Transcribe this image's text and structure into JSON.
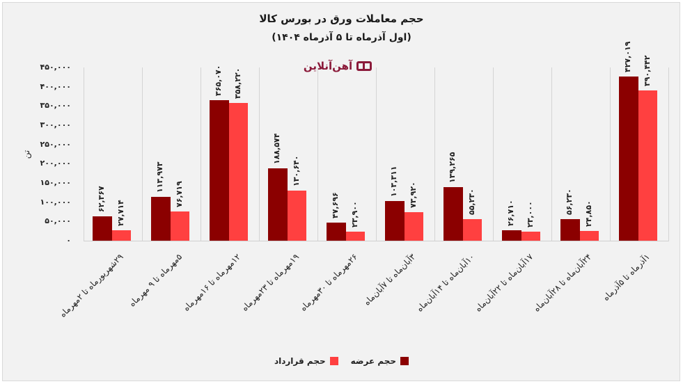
{
  "header": {
    "title": "حجم معاملات ورق در بورس کالا",
    "subtitle": "(اول آذرماه تا ۵ آذرماه ۱۴۰۴)",
    "logo_text": "آهن‌آنلاین"
  },
  "colors": {
    "offer": "#8b0000",
    "contract": "#ff4040",
    "logo": "#8b1a3a",
    "background": "#f2f2f2"
  },
  "legend": [
    {
      "label": "حجم عرضه",
      "color": "#8b0000"
    },
    {
      "label": "حجم قرارداد",
      "color": "#ff4040"
    }
  ],
  "y_axis": {
    "label": "تن",
    "ticks": [
      "۴۵۰,۰۰۰",
      "۴۰۰,۰۰۰",
      "۳۵۰,۰۰۰",
      "۳۰۰,۰۰۰",
      "۲۵۰,۰۰۰",
      "۲۰۰,۰۰۰",
      "۱۵۰,۰۰۰",
      "۱۰۰,۰۰۰",
      "۵۰,۰۰۰",
      "۰"
    ]
  },
  "bars": [
    {
      "category": "۲۹شهریورماه تا ۲مهرماه",
      "offer_label": "۶۲,۳۶۷",
      "contract_label": "۲۷,۷۱۴"
    },
    {
      "category": "۵مهرماه تا ۹ مهرماه",
      "offer_label": "۱۱۳,۹۷۳",
      "contract_label": "۷۶,۷۱۹"
    },
    {
      "category": "۱۲مهرماه تا ۱۶مهرماه",
      "offer_label": "۳۶۵,۰۷۰",
      "contract_label": "۳۵۸,۲۲۰"
    },
    {
      "category": "۱۹مهرماه تا ۲۳مهرماه",
      "offer_label": "۱۸۸,۵۷۴",
      "contract_label": "۱۳۰,۶۴۰"
    },
    {
      "category": "۲۶مهرماه تا ۳۰مهرماه",
      "offer_label": "۴۷,۶۹۶",
      "contract_label": "۲۳,۹۰۰"
    },
    {
      "category": "۳آبان‌ماه تا ۷آبان‌ماه",
      "offer_label": "۱۰۳,۳۱۱",
      "contract_label": "۷۳,۹۲۰"
    },
    {
      "category": "۱۰آبان‌ماه تا ۱۴آبان‌ماه",
      "offer_label": "۱۳۹,۲۶۵",
      "contract_label": "۵۵,۲۳۰"
    },
    {
      "category": "۱۷آبان‌ماه تا ۲۲آبان‌ماه",
      "offer_label": "۲۶,۷۱۰",
      "contract_label": "۲۳,۰۰۰"
    },
    {
      "category": "۲۴آبان‌ماه تا ۲۸آبان‌ماه",
      "offer_label": "۵۶,۲۳۰",
      "contract_label": "۲۴,۸۵۰"
    },
    {
      "category": "۱آذرماه تا ۵آذرماه",
      "offer_label": "۴۲۷,۰۱۹",
      "contract_label": "۳۹۰,۴۴۲"
    }
  ],
  "chart_data": {
    "type": "bar",
    "title": "حجم معاملات ورق در بورس کالا",
    "subtitle": "(اول آذرماه تا ۵ آذرماه ۱۴۰۴)",
    "xlabel": "",
    "ylabel": "تن",
    "ylim": [
      0,
      450000
    ],
    "grid": "vertical category separators",
    "legend_position": "bottom",
    "categories": [
      "۲۹شهریورماه تا ۲مهرماه",
      "۵مهرماه تا ۹ مهرماه",
      "۱۲مهرماه تا ۱۶مهرماه",
      "۱۹مهرماه تا ۲۳مهرماه",
      "۲۶مهرماه تا ۳۰مهرماه",
      "۳آبان‌ماه تا ۷آبان‌ماه",
      "۱۰آبان‌ماه تا ۱۴آبان‌ماه",
      "۱۷آبان‌ماه تا ۲۲آبان‌ماه",
      "۲۴آبان‌ماه تا ۲۸آبان‌ماه",
      "۱آذرماه تا ۵آذرماه"
    ],
    "series": [
      {
        "name": "حجم عرضه",
        "color": "#8b0000",
        "values": [
          62367,
          113973,
          365070,
          188574,
          47696,
          103311,
          139265,
          26710,
          56230,
          427019
        ]
      },
      {
        "name": "حجم قرارداد",
        "color": "#ff4040",
        "values": [
          27714,
          76719,
          358220,
          130640,
          23900,
          73920,
          55230,
          23000,
          24850,
          390442
        ]
      }
    ]
  }
}
